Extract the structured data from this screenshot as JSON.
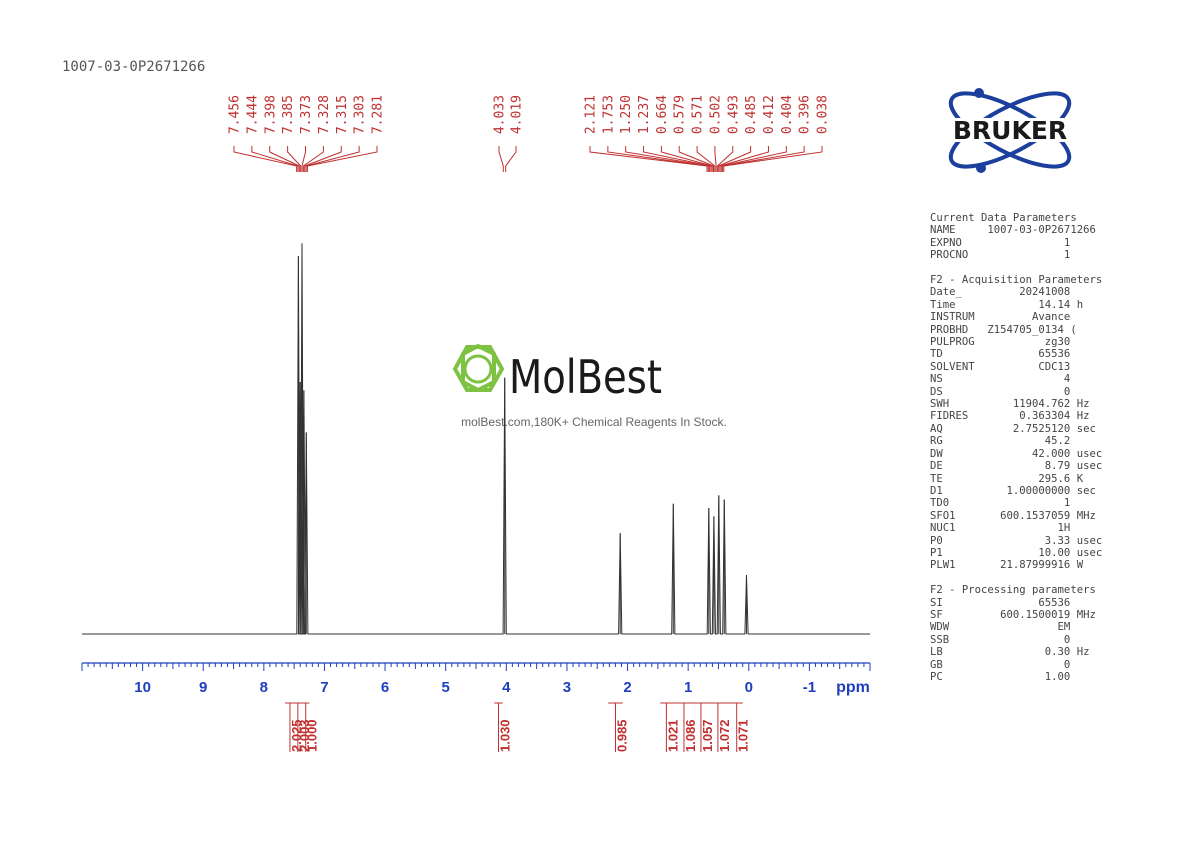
{
  "sample_id": "1007-03-0P2671266",
  "watermark": {
    "brand": "MolBest",
    "tagline": "molBest.com,180K+ Chemical Reagents In Stock."
  },
  "logo": {
    "text": "BRUKER"
  },
  "colors": {
    "peak_labels": "#c03030",
    "axis": "#1f3fbf",
    "spectrum": "#333333",
    "logo": "#1c3f9e",
    "watermark": "#7dc242"
  },
  "chart_data": {
    "type": "line",
    "title": "",
    "xlabel": "ppm",
    "ylabel": "",
    "xlim": [
      11.0,
      -2.0
    ],
    "x_ticks": [
      10,
      9,
      8,
      7,
      6,
      5,
      4,
      3,
      2,
      1,
      0,
      -1
    ],
    "tick_labels": [
      "10",
      "9",
      "8",
      "7",
      "6",
      "5",
      "4",
      "3",
      "2",
      "1",
      "0",
      "-1"
    ],
    "peak_groups": [
      {
        "labels": [
          "7.456",
          "7.444",
          "7.398",
          "7.385",
          "7.373",
          "7.328",
          "7.315",
          "7.303",
          "7.281"
        ],
        "target_ppm": 7.37
      },
      {
        "labels": [
          "4.033",
          "4.019"
        ],
        "target_ppm": 4.03
      },
      {
        "labels": [
          "2.121",
          "1.753",
          "1.250",
          "1.237",
          "0.664",
          "0.579",
          "0.571",
          "0.502",
          "0.493",
          "0.485",
          "0.412",
          "0.404",
          "0.396",
          "0.038"
        ],
        "target_ppm": 0.55
      }
    ],
    "peaks": [
      {
        "ppm": 7.43,
        "height": 0.9
      },
      {
        "ppm": 7.4,
        "height": 0.6
      },
      {
        "ppm": 7.37,
        "height": 0.93
      },
      {
        "ppm": 7.34,
        "height": 0.58
      },
      {
        "ppm": 7.3,
        "height": 0.48
      },
      {
        "ppm": 4.026,
        "height": 0.61
      },
      {
        "ppm": 2.121,
        "height": 0.24
      },
      {
        "ppm": 1.245,
        "height": 0.31
      },
      {
        "ppm": 0.66,
        "height": 0.3
      },
      {
        "ppm": 0.575,
        "height": 0.28
      },
      {
        "ppm": 0.495,
        "height": 0.33
      },
      {
        "ppm": 0.404,
        "height": 0.32
      },
      {
        "ppm": 0.038,
        "height": 0.14
      }
    ],
    "integrals": [
      {
        "ppm": 7.47,
        "value": "2.025"
      },
      {
        "ppm": 7.34,
        "value": "2.003"
      },
      {
        "ppm": 7.21,
        "value": "1.000"
      },
      {
        "ppm": 4.03,
        "value": "1.030"
      },
      {
        "ppm": 2.1,
        "value": "0.985"
      },
      {
        "ppm": 1.26,
        "value": "1.021"
      },
      {
        "ppm": 0.97,
        "value": "1.086"
      },
      {
        "ppm": 0.69,
        "value": "1.057"
      },
      {
        "ppm": 0.41,
        "value": "1.072"
      },
      {
        "ppm": 0.1,
        "value": "1.071"
      }
    ]
  },
  "parameters": {
    "current": {
      "title": "Current Data Parameters",
      "rows": [
        {
          "k": "NAME",
          "v": "1007-03-0P2671266",
          "u": ""
        },
        {
          "k": "EXPNO",
          "v": "1",
          "u": ""
        },
        {
          "k": "PROCNO",
          "v": "1",
          "u": ""
        }
      ]
    },
    "acquisition": {
      "title": "F2 - Acquisition Parameters",
      "rows": [
        {
          "k": "Date_",
          "v": "20241008",
          "u": ""
        },
        {
          "k": "Time",
          "v": "14.14",
          "u": "h"
        },
        {
          "k": "INSTRUM",
          "v": "Avance",
          "u": ""
        },
        {
          "k": "PROBHD",
          "v": "Z154705_0134 (",
          "u": ""
        },
        {
          "k": "PULPROG",
          "v": "zg30",
          "u": ""
        },
        {
          "k": "TD",
          "v": "65536",
          "u": ""
        },
        {
          "k": "SOLVENT",
          "v": "CDC13",
          "u": ""
        },
        {
          "k": "NS",
          "v": "4",
          "u": ""
        },
        {
          "k": "DS",
          "v": "0",
          "u": ""
        },
        {
          "k": "SWH",
          "v": "11904.762",
          "u": "Hz"
        },
        {
          "k": "FIDRES",
          "v": "0.363304",
          "u": "Hz"
        },
        {
          "k": "AQ",
          "v": "2.7525120",
          "u": "sec"
        },
        {
          "k": "RG",
          "v": "45.2",
          "u": ""
        },
        {
          "k": "DW",
          "v": "42.000",
          "u": "usec"
        },
        {
          "k": "DE",
          "v": "8.79",
          "u": "usec"
        },
        {
          "k": "TE",
          "v": "295.6",
          "u": "K"
        },
        {
          "k": "D1",
          "v": "1.00000000",
          "u": "sec"
        },
        {
          "k": "TD0",
          "v": "1",
          "u": ""
        },
        {
          "k": "SFO1",
          "v": "600.1537059",
          "u": "MHz"
        },
        {
          "k": "NUC1",
          "v": "1H",
          "u": ""
        },
        {
          "k": "P0",
          "v": "3.33",
          "u": "usec"
        },
        {
          "k": "P1",
          "v": "10.00",
          "u": "usec"
        },
        {
          "k": "PLW1",
          "v": "21.87999916",
          "u": "W"
        }
      ]
    },
    "processing": {
      "title": "F2 - Processing parameters",
      "rows": [
        {
          "k": "SI",
          "v": "65536",
          "u": ""
        },
        {
          "k": "SF",
          "v": "600.1500019",
          "u": "MHz"
        },
        {
          "k": "WDW",
          "v": "EM",
          "u": ""
        },
        {
          "k": "SSB",
          "v": "0",
          "u": ""
        },
        {
          "k": "LB",
          "v": "0.30",
          "u": "Hz"
        },
        {
          "k": "GB",
          "v": "0",
          "u": ""
        },
        {
          "k": "PC",
          "v": "1.00",
          "u": ""
        }
      ]
    }
  }
}
